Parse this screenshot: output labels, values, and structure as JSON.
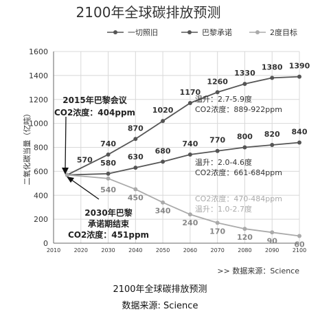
{
  "caption": {
    "line1": "2100年全球碳排放预测",
    "line2": "数据来源: Science"
  },
  "chart_data": {
    "type": "line",
    "title": "2100年全球碳排放预测",
    "ylabel": "二氧化碳当量（亿吨）",
    "xlabel": "",
    "x": [
      2010,
      2020,
      2030,
      2040,
      2050,
      2060,
      2070,
      2080,
      2090,
      2100
    ],
    "xlim": [
      2010,
      2100
    ],
    "ylim": [
      0,
      1600
    ],
    "yticks": [
      0,
      200,
      400,
      600,
      800,
      1000,
      1200,
      1400,
      1600
    ],
    "grid": true,
    "legend_position": "top",
    "series": [
      {
        "name": "一切照旧",
        "color": "#555555",
        "x": [
          2015,
          2030,
          2040,
          2050,
          2060,
          2070,
          2080,
          2090,
          2100
        ],
        "values": [
          570,
          740,
          870,
          1020,
          1170,
          1260,
          1330,
          1380,
          1390
        ],
        "labels": [
          "",
          "740",
          "870",
          "1020",
          "1170",
          "1260",
          "1330",
          "1380",
          "1390"
        ]
      },
      {
        "name": "巴黎承诺",
        "color": "#555555",
        "x": [
          2015,
          2030,
          2040,
          2050,
          2060,
          2070,
          2080,
          2090,
          2100
        ],
        "values": [
          570,
          580,
          630,
          680,
          740,
          770,
          800,
          820,
          840
        ],
        "labels": [
          "",
          "580",
          "630",
          "680",
          "740",
          "770",
          "800",
          "820",
          "840"
        ]
      },
      {
        "name": "2度目标",
        "color": "#aaaaaa",
        "x": [
          2015,
          2030,
          2040,
          2050,
          2060,
          2070,
          2080,
          2090,
          2100
        ],
        "values": [
          570,
          540,
          450,
          340,
          240,
          170,
          120,
          90,
          60
        ],
        "labels": [
          "",
          "540",
          "450",
          "340",
          "240",
          "170",
          "120",
          "90",
          "60"
        ]
      }
    ],
    "start_label": "570",
    "annotations": {
      "paris_agreement": [
        "2015年巴黎会议",
        "CO2浓度：404ppm"
      ],
      "paris_end": [
        "2030年巴黎",
        "承诺期结束",
        "CO2浓度：451ppm"
      ],
      "bau_range": [
        "温升：2.7-5.9度",
        "CO2浓度：889-922ppm"
      ],
      "paris_range": [
        "温升：2.0-4.6度",
        "CO2浓度：661-684ppm"
      ],
      "two_degree_range": [
        "CO2浓度：470-484ppm",
        "温升：1.0-2.7度"
      ]
    },
    "source": ">> 数据来源：Science"
  }
}
